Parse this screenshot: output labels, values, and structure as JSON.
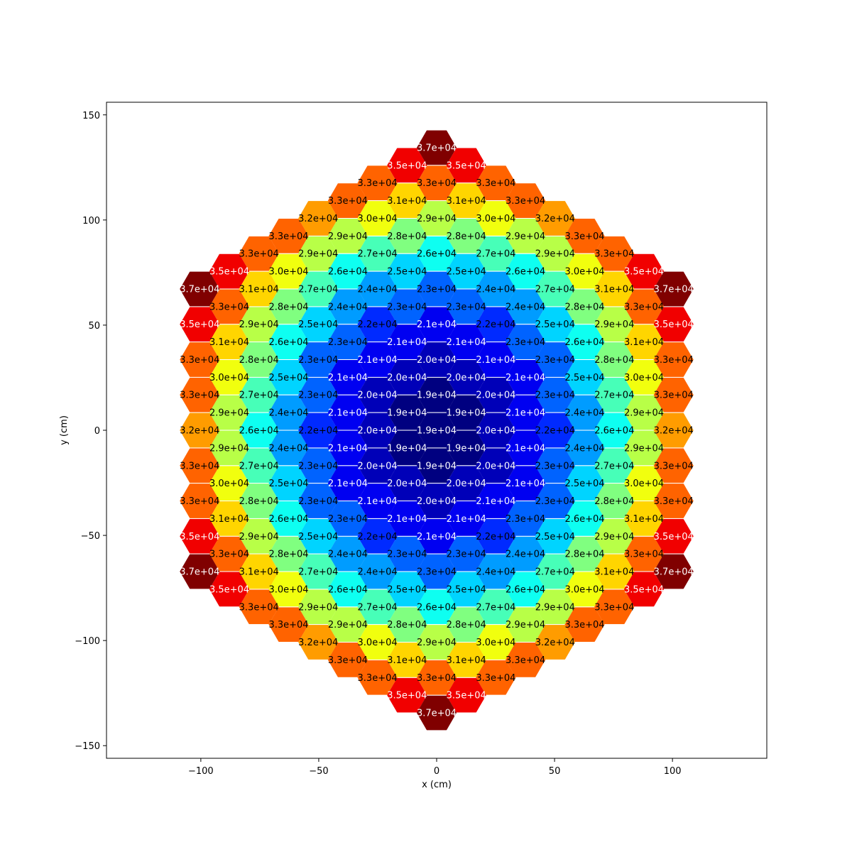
{
  "chart_data": {
    "type": "heatmap",
    "subtype": "hexagonal-assembly-map",
    "xlabel": "x (cm)",
    "ylabel": "y (cm)",
    "xlim": [
      -140,
      140
    ],
    "ylim": [
      -156,
      156
    ],
    "xticks": [
      -100,
      -50,
      0,
      50,
      100
    ],
    "yticks": [
      -150,
      -100,
      -50,
      0,
      50,
      100,
      150
    ],
    "xtick_labels": [
      "−100",
      "−50",
      "0",
      "50",
      "100"
    ],
    "ytick_labels": [
      "−150",
      "−100",
      "−50",
      "0",
      "50",
      "100",
      "150"
    ],
    "colormap": "jet",
    "color_range": [
      19000,
      37000
    ],
    "grid": false,
    "legend": "none",
    "hex_flat_to_flat_cm": 14.5,
    "row_pitch_cm": 8.4,
    "value_rows": [
      [
        null,
        null,
        null,
        null,
        null,
        null,
        null,
        null,
        null,
        null,
        null,
        null,
        null,
        null,
        null,
        null,
        null,
        null,
        null,
        null,
        null,
        null,
        null,
        null,
        null,
        null,
        null,
        null,
        null,
        null,
        null,
        null,
        null,
        null,
        null,
        null,
        null,
        null
      ],
      [
        "3.7e+04"
      ],
      [
        "3.5e+04",
        "3.5e+04"
      ],
      [
        "3.3e+04",
        "3.3e+04",
        "3.3e+04"
      ],
      [
        "3.3e+04",
        "3.1e+04",
        "3.1e+04",
        "3.3e+04"
      ],
      [
        "3.2e+04",
        "3.0e+04",
        "2.9e+04",
        "3.0e+04",
        "3.2e+04"
      ],
      [
        "3.3e+04",
        "2.9e+04",
        "2.8e+04",
        "2.8e+04",
        "2.9e+04",
        "3.3e+04"
      ],
      [
        "3.3e+04",
        "2.9e+04",
        "2.7e+04",
        "2.6e+04",
        "2.7e+04",
        "2.9e+04",
        "3.3e+04"
      ],
      [
        "3.5e+04",
        "3.0e+04",
        "2.6e+04",
        "2.5e+04",
        "2.5e+04",
        "2.6e+04",
        "3.0e+04",
        "3.5e+04"
      ],
      [
        "3.7e+04",
        "3.1e+04",
        "2.7e+04",
        "2.4e+04",
        "2.3e+04",
        "2.4e+04",
        "2.7e+04",
        "3.1e+04",
        "3.7e+04"
      ],
      [
        "3.3e+04",
        "2.8e+04",
        "2.4e+04",
        "2.3e+04",
        "2.3e+04",
        "2.4e+04",
        "2.8e+04",
        "3.3e+04"
      ],
      [
        "3.5e+04",
        "2.9e+04",
        "2.5e+04",
        "2.2e+04",
        "2.1e+04",
        "2.2e+04",
        "2.5e+04",
        "2.9e+04",
        "3.5e+04"
      ],
      [
        "3.1e+04",
        "2.6e+04",
        "2.3e+04",
        "2.1e+04",
        "2.1e+04",
        "2.3e+04",
        "2.6e+04",
        "3.1e+04"
      ],
      [
        "3.3e+04",
        "2.8e+04",
        "2.3e+04",
        "2.1e+04",
        "2.0e+04",
        "2.1e+04",
        "2.3e+04",
        "2.8e+04",
        "3.3e+04"
      ],
      [
        "3.0e+04",
        "2.5e+04",
        "2.1e+04",
        "2.0e+04",
        "2.0e+04",
        "2.1e+04",
        "2.5e+04",
        "3.0e+04"
      ],
      [
        "3.3e+04",
        "2.7e+04",
        "2.3e+04",
        "2.0e+04",
        "1.9e+04",
        "2.0e+04",
        "2.3e+04",
        "2.7e+04",
        "3.3e+04"
      ],
      [
        "2.9e+04",
        "2.4e+04",
        "2.1e+04",
        "1.9e+04",
        "1.9e+04",
        "2.1e+04",
        "2.4e+04",
        "2.9e+04"
      ],
      [
        "3.2e+04",
        "2.6e+04",
        "2.2e+04",
        "2.0e+04",
        "1.9e+04",
        "2.0e+04",
        "2.2e+04",
        "2.6e+04",
        "3.2e+04"
      ],
      [
        "2.9e+04",
        "2.4e+04",
        "2.1e+04",
        "1.9e+04",
        "1.9e+04",
        "2.1e+04",
        "2.4e+04",
        "2.9e+04"
      ],
      [
        "3.3e+04",
        "2.7e+04",
        "2.3e+04",
        "2.0e+04",
        "1.9e+04",
        "2.0e+04",
        "2.3e+04",
        "2.7e+04",
        "3.3e+04"
      ],
      [
        "3.0e+04",
        "2.5e+04",
        "2.1e+04",
        "2.0e+04",
        "2.0e+04",
        "2.1e+04",
        "2.5e+04",
        "3.0e+04"
      ],
      [
        "3.3e+04",
        "2.8e+04",
        "2.3e+04",
        "2.1e+04",
        "2.0e+04",
        "2.1e+04",
        "2.3e+04",
        "2.8e+04",
        "3.3e+04"
      ],
      [
        "3.1e+04",
        "2.6e+04",
        "2.3e+04",
        "2.1e+04",
        "2.1e+04",
        "2.3e+04",
        "2.6e+04",
        "3.1e+04"
      ],
      [
        "3.5e+04",
        "2.9e+04",
        "2.5e+04",
        "2.2e+04",
        "2.1e+04",
        "2.2e+04",
        "2.5e+04",
        "2.9e+04",
        "3.5e+04"
      ],
      [
        "3.3e+04",
        "2.8e+04",
        "2.4e+04",
        "2.3e+04",
        "2.3e+04",
        "2.4e+04",
        "2.8e+04",
        "3.3e+04"
      ],
      [
        "3.7e+04",
        "3.1e+04",
        "2.7e+04",
        "2.4e+04",
        "2.3e+04",
        "2.4e+04",
        "2.7e+04",
        "3.1e+04",
        "3.7e+04"
      ],
      [
        "3.5e+04",
        "3.0e+04",
        "2.6e+04",
        "2.5e+04",
        "2.5e+04",
        "2.6e+04",
        "3.0e+04",
        "3.5e+04"
      ],
      [
        "3.3e+04",
        "2.9e+04",
        "2.7e+04",
        "2.6e+04",
        "2.7e+04",
        "2.9e+04",
        "3.3e+04"
      ],
      [
        "3.3e+04",
        "2.9e+04",
        "2.8e+04",
        "2.8e+04",
        "2.9e+04",
        "3.3e+04"
      ],
      [
        "3.2e+04",
        "3.0e+04",
        "2.9e+04",
        "3.0e+04",
        "3.2e+04"
      ],
      [
        "3.3e+04",
        "3.1e+04",
        "3.1e+04",
        "3.3e+04"
      ],
      [
        "3.3e+04",
        "3.3e+04",
        "3.3e+04"
      ],
      [
        "3.5e+04",
        "3.5e+04"
      ],
      [
        "3.7e+04"
      ]
    ]
  }
}
